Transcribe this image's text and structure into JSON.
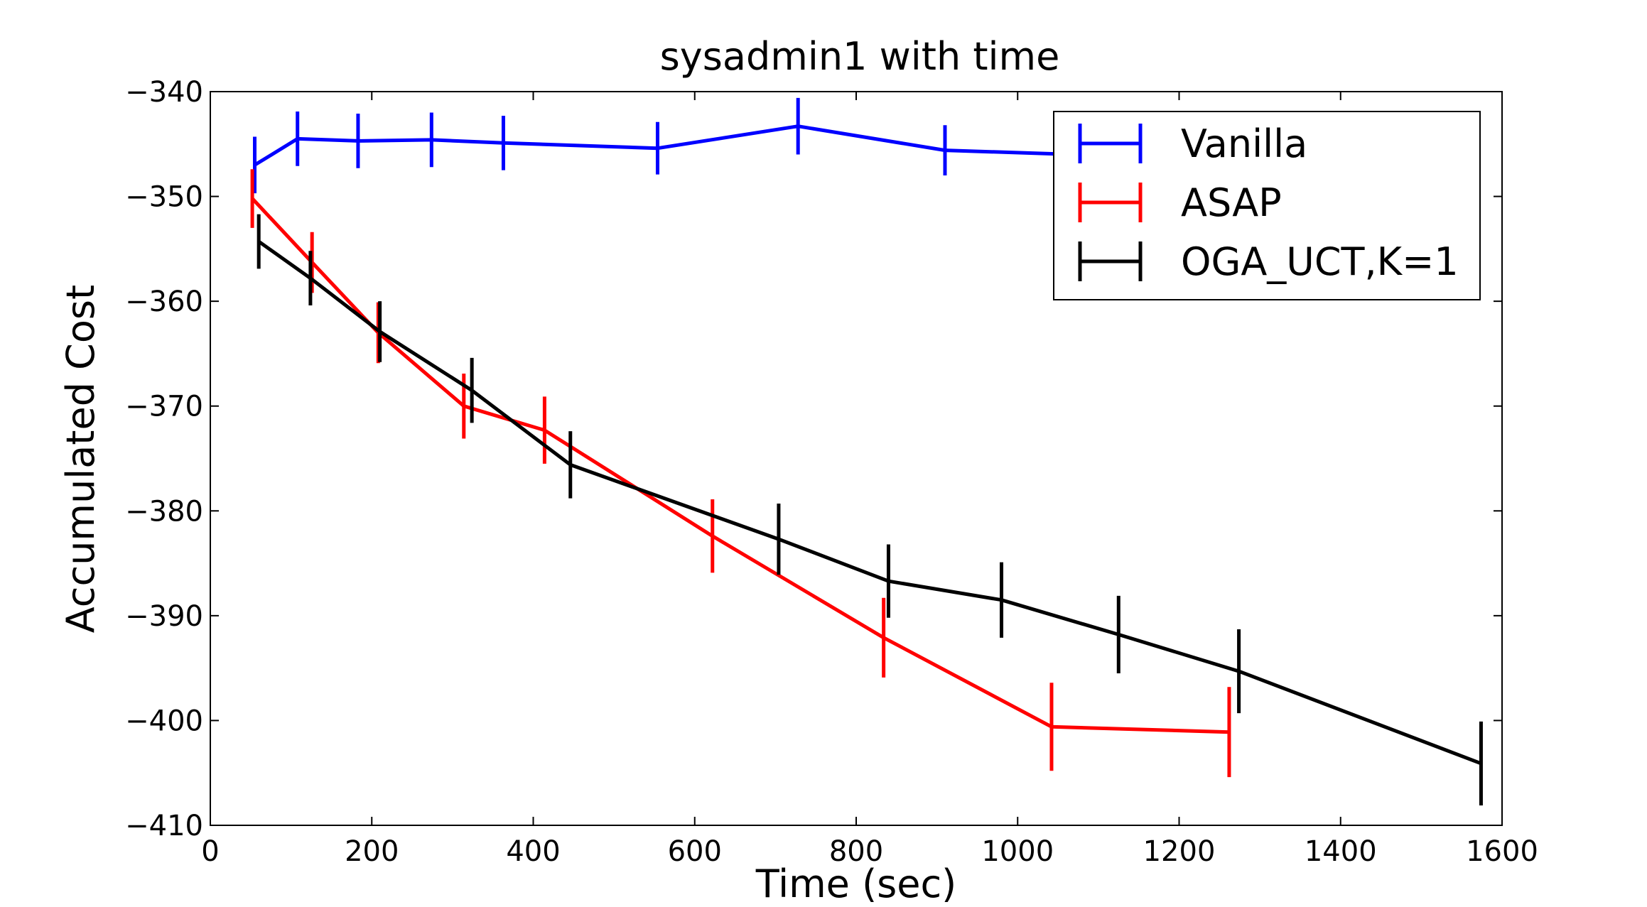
{
  "chart_data": {
    "type": "line",
    "title": "sysadmin1 with time",
    "xlabel": "Time (sec)",
    "ylabel": "Accumulated Cost",
    "xlim": [
      0,
      1600
    ],
    "ylim": [
      -410,
      -340
    ],
    "xticks": [
      0,
      200,
      400,
      600,
      800,
      1000,
      1200,
      1400,
      1600
    ],
    "yticks": [
      -340,
      -350,
      -360,
      -370,
      -380,
      -390,
      -400,
      -410
    ],
    "xtick_labels": [
      "0",
      "200",
      "400",
      "600",
      "800",
      "1000",
      "1200",
      "1400",
      "1600"
    ],
    "ytick_labels": [
      "−340",
      "−350",
      "−360",
      "−370",
      "−380",
      "−390",
      "−400",
      "−410"
    ],
    "grid": false,
    "legend_position": "top-right",
    "series": [
      {
        "name": "Vanilla",
        "color": "#0000ff",
        "x": [
          55,
          108,
          183,
          274,
          363,
          554,
          728,
          910,
          1150
        ],
        "y": [
          -347.0,
          -344.5,
          -344.7,
          -344.6,
          -344.9,
          -345.4,
          -343.3,
          -345.6,
          -346.2
        ],
        "yerr": [
          2.7,
          2.6,
          2.6,
          2.6,
          2.6,
          2.5,
          2.7,
          2.4,
          2.4
        ]
      },
      {
        "name": "ASAP",
        "color": "#ff0000",
        "x": [
          52,
          126,
          208,
          314,
          414,
          622,
          834,
          1042,
          1262
        ],
        "y": [
          -350.2,
          -356.3,
          -363.0,
          -370.0,
          -372.3,
          -382.4,
          -392.1,
          -400.6,
          -401.1
        ],
        "yerr": [
          2.8,
          2.9,
          2.9,
          3.1,
          3.2,
          3.5,
          3.8,
          4.2,
          4.3
        ]
      },
      {
        "name": "OGA_UCT,K=1",
        "color": "#000000",
        "x": [
          60,
          124,
          210,
          324,
          446,
          704,
          840,
          980,
          1125,
          1274,
          1574
        ],
        "y": [
          -354.3,
          -357.8,
          -362.9,
          -368.5,
          -375.6,
          -382.7,
          -386.7,
          -388.5,
          -391.8,
          -395.3,
          -404.1
        ],
        "yerr": [
          2.6,
          2.6,
          2.9,
          3.1,
          3.2,
          3.4,
          3.5,
          3.6,
          3.7,
          4.0,
          4.0
        ]
      }
    ]
  }
}
